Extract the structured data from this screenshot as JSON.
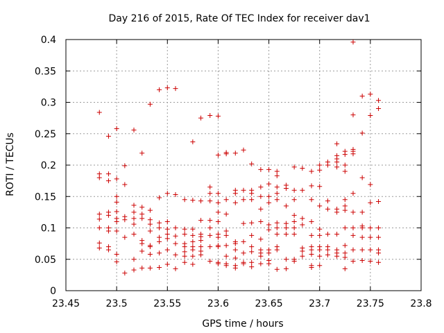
{
  "chart_data": {
    "type": "scatter",
    "title": "Day 216 of 2015, Rate Of TEC Index for receiver dav1",
    "xlabel": "GPS time / hours",
    "ylabel": "ROTI / TECUs",
    "xlim": [
      23.45,
      23.8
    ],
    "ylim": [
      0,
      0.4
    ],
    "xticks": [
      "23.45",
      "23.5",
      "23.55",
      "23.6",
      "23.65",
      "23.7",
      "23.75",
      "23.8"
    ],
    "yticks": [
      "0",
      "0.05",
      "0.1",
      "0.15",
      "0.2",
      "0.25",
      "0.3",
      "0.35",
      "0.4"
    ],
    "grid": true,
    "marker": "+",
    "series": [
      {
        "color": "#cc0000",
        "points": [
          [
            23.483,
            0.284
          ],
          [
            23.483,
            0.186
          ],
          [
            23.483,
            0.18
          ],
          [
            23.483,
            0.122
          ],
          [
            23.483,
            0.114
          ],
          [
            23.483,
            0.1
          ],
          [
            23.483,
            0.076
          ],
          [
            23.483,
            0.068
          ],
          [
            23.492,
            0.246
          ],
          [
            23.492,
            0.186
          ],
          [
            23.492,
            0.175
          ],
          [
            23.492,
            0.125
          ],
          [
            23.492,
            0.12
          ],
          [
            23.492,
            0.1
          ],
          [
            23.492,
            0.095
          ],
          [
            23.492,
            0.07
          ],
          [
            23.492,
            0.065
          ],
          [
            23.5,
            0.258
          ],
          [
            23.5,
            0.178
          ],
          [
            23.5,
            0.15
          ],
          [
            23.5,
            0.141
          ],
          [
            23.5,
            0.126
          ],
          [
            23.5,
            0.115
          ],
          [
            23.5,
            0.11
          ],
          [
            23.5,
            0.095
          ],
          [
            23.5,
            0.058
          ],
          [
            23.5,
            0.046
          ],
          [
            23.508,
            0.199
          ],
          [
            23.508,
            0.169
          ],
          [
            23.508,
            0.118
          ],
          [
            23.508,
            0.113
          ],
          [
            23.508,
            0.085
          ],
          [
            23.508,
            0.028
          ],
          [
            23.517,
            0.256
          ],
          [
            23.517,
            0.136
          ],
          [
            23.517,
            0.125
          ],
          [
            23.517,
            0.115
          ],
          [
            23.517,
            0.106
          ],
          [
            23.517,
            0.09
          ],
          [
            23.517,
            0.05
          ],
          [
            23.517,
            0.033
          ],
          [
            23.525,
            0.219
          ],
          [
            23.525,
            0.133
          ],
          [
            23.525,
            0.122
          ],
          [
            23.525,
            0.115
          ],
          [
            23.525,
            0.08
          ],
          [
            23.525,
            0.075
          ],
          [
            23.525,
            0.063
          ],
          [
            23.525,
            0.036
          ],
          [
            23.533,
            0.297
          ],
          [
            23.533,
            0.128
          ],
          [
            23.533,
            0.113
          ],
          [
            23.533,
            0.106
          ],
          [
            23.533,
            0.095
          ],
          [
            23.533,
            0.072
          ],
          [
            23.533,
            0.07
          ],
          [
            23.533,
            0.058
          ],
          [
            23.533,
            0.036
          ],
          [
            23.542,
            0.32
          ],
          [
            23.542,
            0.148
          ],
          [
            23.542,
            0.108
          ],
          [
            23.542,
            0.1
          ],
          [
            23.542,
            0.085
          ],
          [
            23.542,
            0.078
          ],
          [
            23.542,
            0.06
          ],
          [
            23.542,
            0.037
          ],
          [
            23.55,
            0.323
          ],
          [
            23.55,
            0.155
          ],
          [
            23.55,
            0.11
          ],
          [
            23.55,
            0.098
          ],
          [
            23.55,
            0.09
          ],
          [
            23.55,
            0.083
          ],
          [
            23.55,
            0.065
          ],
          [
            23.55,
            0.042
          ],
          [
            23.558,
            0.322
          ],
          [
            23.558,
            0.153
          ],
          [
            23.558,
            0.1
          ],
          [
            23.558,
            0.087
          ],
          [
            23.558,
            0.075
          ],
          [
            23.558,
            0.057
          ],
          [
            23.558,
            0.035
          ],
          [
            23.567,
            0.145
          ],
          [
            23.567,
            0.098
          ],
          [
            23.567,
            0.09
          ],
          [
            23.567,
            0.075
          ],
          [
            23.567,
            0.07
          ],
          [
            23.567,
            0.062
          ],
          [
            23.567,
            0.055
          ],
          [
            23.567,
            0.045
          ],
          [
            23.575,
            0.237
          ],
          [
            23.575,
            0.144
          ],
          [
            23.575,
            0.098
          ],
          [
            23.575,
            0.088
          ],
          [
            23.575,
            0.078
          ],
          [
            23.575,
            0.07
          ],
          [
            23.575,
            0.065
          ],
          [
            23.575,
            0.055
          ],
          [
            23.575,
            0.042
          ],
          [
            23.583,
            0.275
          ],
          [
            23.583,
            0.143
          ],
          [
            23.583,
            0.112
          ],
          [
            23.583,
            0.09
          ],
          [
            23.583,
            0.086
          ],
          [
            23.583,
            0.08
          ],
          [
            23.583,
            0.07
          ],
          [
            23.583,
            0.063
          ],
          [
            23.583,
            0.057
          ],
          [
            23.592,
            0.279
          ],
          [
            23.592,
            0.165
          ],
          [
            23.592,
            0.155
          ],
          [
            23.592,
            0.143
          ],
          [
            23.592,
            0.112
          ],
          [
            23.592,
            0.1
          ],
          [
            23.592,
            0.088
          ],
          [
            23.592,
            0.07
          ],
          [
            23.592,
            0.047
          ],
          [
            23.6,
            0.278
          ],
          [
            23.6,
            0.216
          ],
          [
            23.6,
            0.155
          ],
          [
            23.6,
            0.14
          ],
          [
            23.6,
            0.125
          ],
          [
            23.6,
            0.11
          ],
          [
            23.6,
            0.09
          ],
          [
            23.6,
            0.085
          ],
          [
            23.6,
            0.072
          ],
          [
            23.6,
            0.07
          ],
          [
            23.6,
            0.045
          ],
          [
            23.6,
            0.043
          ],
          [
            23.608,
            0.22
          ],
          [
            23.608,
            0.218
          ],
          [
            23.608,
            0.145
          ],
          [
            23.608,
            0.122
          ],
          [
            23.608,
            0.095
          ],
          [
            23.608,
            0.088
          ],
          [
            23.608,
            0.072
          ],
          [
            23.608,
            0.055
          ],
          [
            23.608,
            0.043
          ],
          [
            23.608,
            0.04
          ],
          [
            23.617,
            0.219
          ],
          [
            23.617,
            0.16
          ],
          [
            23.617,
            0.155
          ],
          [
            23.617,
            0.14
          ],
          [
            23.617,
            0.078
          ],
          [
            23.617,
            0.075
          ],
          [
            23.617,
            0.065
          ],
          [
            23.617,
            0.052
          ],
          [
            23.617,
            0.04
          ],
          [
            23.617,
            0.036
          ],
          [
            23.625,
            0.224
          ],
          [
            23.625,
            0.16
          ],
          [
            23.625,
            0.145
          ],
          [
            23.625,
            0.107
          ],
          [
            23.625,
            0.078
          ],
          [
            23.625,
            0.06
          ],
          [
            23.625,
            0.045
          ],
          [
            23.625,
            0.043
          ],
          [
            23.633,
            0.202
          ],
          [
            23.633,
            0.16
          ],
          [
            23.633,
            0.155
          ],
          [
            23.633,
            0.145
          ],
          [
            23.633,
            0.108
          ],
          [
            23.633,
            0.088
          ],
          [
            23.633,
            0.07
          ],
          [
            23.633,
            0.062
          ],
          [
            23.633,
            0.045
          ],
          [
            23.633,
            0.038
          ],
          [
            23.642,
            0.193
          ],
          [
            23.642,
            0.165
          ],
          [
            23.642,
            0.15
          ],
          [
            23.642,
            0.13
          ],
          [
            23.642,
            0.11
          ],
          [
            23.642,
            0.082
          ],
          [
            23.642,
            0.065
          ],
          [
            23.642,
            0.06
          ],
          [
            23.642,
            0.055
          ],
          [
            23.642,
            0.043
          ],
          [
            23.65,
            0.193
          ],
          [
            23.65,
            0.17
          ],
          [
            23.65,
            0.15
          ],
          [
            23.65,
            0.14
          ],
          [
            23.65,
            0.105
          ],
          [
            23.65,
            0.097
          ],
          [
            23.65,
            0.065
          ],
          [
            23.65,
            0.06
          ],
          [
            23.65,
            0.048
          ],
          [
            23.65,
            0.043
          ],
          [
            23.658,
            0.19
          ],
          [
            23.658,
            0.183
          ],
          [
            23.658,
            0.165
          ],
          [
            23.658,
            0.155
          ],
          [
            23.658,
            0.145
          ],
          [
            23.658,
            0.108
          ],
          [
            23.658,
            0.1
          ],
          [
            23.658,
            0.09
          ],
          [
            23.658,
            0.07
          ],
          [
            23.658,
            0.065
          ],
          [
            23.658,
            0.034
          ],
          [
            23.667,
            0.168
          ],
          [
            23.667,
            0.163
          ],
          [
            23.667,
            0.135
          ],
          [
            23.667,
            0.107
          ],
          [
            23.667,
            0.1
          ],
          [
            23.667,
            0.09
          ],
          [
            23.667,
            0.05
          ],
          [
            23.667,
            0.035
          ],
          [
            23.675,
            0.197
          ],
          [
            23.675,
            0.16
          ],
          [
            23.675,
            0.145
          ],
          [
            23.675,
            0.12
          ],
          [
            23.675,
            0.11
          ],
          [
            23.675,
            0.1
          ],
          [
            23.675,
            0.09
          ],
          [
            23.675,
            0.05
          ],
          [
            23.675,
            0.047
          ],
          [
            23.683,
            0.195
          ],
          [
            23.683,
            0.16
          ],
          [
            23.683,
            0.115
          ],
          [
            23.683,
            0.105
          ],
          [
            23.683,
            0.068
          ],
          [
            23.683,
            0.063
          ],
          [
            23.683,
            0.055
          ],
          [
            23.692,
            0.19
          ],
          [
            23.692,
            0.167
          ],
          [
            23.692,
            0.145
          ],
          [
            23.692,
            0.11
          ],
          [
            23.692,
            0.088
          ],
          [
            23.692,
            0.07
          ],
          [
            23.692,
            0.065
          ],
          [
            23.692,
            0.058
          ],
          [
            23.692,
            0.04
          ],
          [
            23.692,
            0.037
          ],
          [
            23.7,
            0.2
          ],
          [
            23.7,
            0.192
          ],
          [
            23.7,
            0.166
          ],
          [
            23.7,
            0.135
          ],
          [
            23.7,
            0.098
          ],
          [
            23.7,
            0.088
          ],
          [
            23.7,
            0.07
          ],
          [
            23.7,
            0.065
          ],
          [
            23.7,
            0.055
          ],
          [
            23.7,
            0.04
          ],
          [
            23.708,
            0.205
          ],
          [
            23.708,
            0.2
          ],
          [
            23.708,
            0.143
          ],
          [
            23.708,
            0.13
          ],
          [
            23.708,
            0.09
          ],
          [
            23.708,
            0.07
          ],
          [
            23.708,
            0.065
          ],
          [
            23.708,
            0.057
          ],
          [
            23.717,
            0.234
          ],
          [
            23.717,
            0.215
          ],
          [
            23.717,
            0.21
          ],
          [
            23.717,
            0.205
          ],
          [
            23.717,
            0.197
          ],
          [
            23.717,
            0.13
          ],
          [
            23.717,
            0.125
          ],
          [
            23.717,
            0.09
          ],
          [
            23.717,
            0.065
          ],
          [
            23.717,
            0.06
          ],
          [
            23.717,
            0.055
          ],
          [
            23.725,
            0.222
          ],
          [
            23.725,
            0.217
          ],
          [
            23.725,
            0.2
          ],
          [
            23.725,
            0.19
          ],
          [
            23.725,
            0.145
          ],
          [
            23.725,
            0.135
          ],
          [
            23.725,
            0.128
          ],
          [
            23.725,
            0.1
          ],
          [
            23.725,
            0.072
          ],
          [
            23.725,
            0.06
          ],
          [
            23.725,
            0.053
          ],
          [
            23.725,
            0.035
          ],
          [
            23.733,
            0.396
          ],
          [
            23.733,
            0.28
          ],
          [
            23.733,
            0.225
          ],
          [
            23.733,
            0.222
          ],
          [
            23.733,
            0.218
          ],
          [
            23.733,
            0.155
          ],
          [
            23.733,
            0.125
          ],
          [
            23.733,
            0.1
          ],
          [
            23.733,
            0.088
          ],
          [
            23.733,
            0.065
          ],
          [
            23.733,
            0.047
          ],
          [
            23.742,
            0.31
          ],
          [
            23.742,
            0.251
          ],
          [
            23.742,
            0.18
          ],
          [
            23.742,
            0.125
          ],
          [
            23.742,
            0.103
          ],
          [
            23.742,
            0.1
          ],
          [
            23.742,
            0.085
          ],
          [
            23.742,
            0.065
          ],
          [
            23.742,
            0.048
          ],
          [
            23.75,
            0.313
          ],
          [
            23.75,
            0.279
          ],
          [
            23.75,
            0.169
          ],
          [
            23.75,
            0.14
          ],
          [
            23.75,
            0.1
          ],
          [
            23.75,
            0.085
          ],
          [
            23.75,
            0.065
          ],
          [
            23.75,
            0.047
          ],
          [
            23.758,
            0.303
          ],
          [
            23.758,
            0.29
          ],
          [
            23.758,
            0.142
          ],
          [
            23.758,
            0.1
          ],
          [
            23.758,
            0.085
          ],
          [
            23.758,
            0.065
          ],
          [
            23.758,
            0.06
          ],
          [
            23.758,
            0.045
          ]
        ]
      }
    ]
  }
}
